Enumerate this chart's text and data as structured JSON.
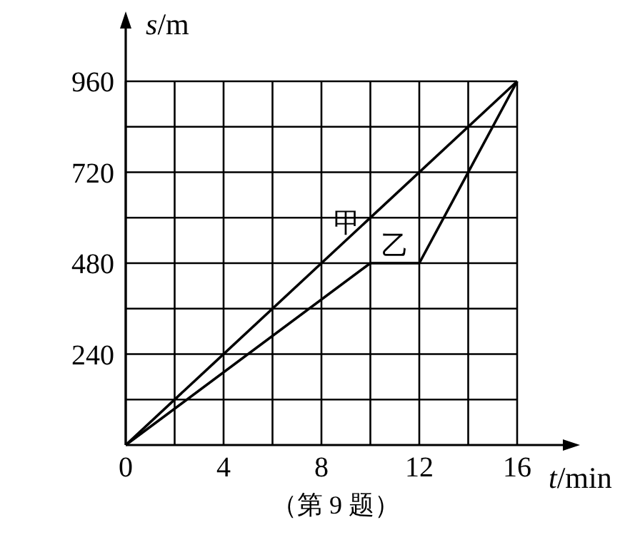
{
  "chart_data": {
    "type": "line",
    "xlabel": "t/min",
    "ylabel": "s/m",
    "series": [
      {
        "name": "甲",
        "color": "#000000",
        "x": [
          0,
          16
        ],
        "values": [
          0,
          960
        ]
      },
      {
        "name": "乙",
        "color": "#000000",
        "x": [
          0,
          10,
          12,
          16
        ],
        "values": [
          0,
          480,
          480,
          960
        ]
      }
    ],
    "xlim": [
      0,
      16
    ],
    "ylim": [
      0,
      960
    ],
    "xticks": [
      0,
      {
        "value": 2,
        "label": null
      },
      4,
      {
        "value": 6,
        "label": null
      },
      8,
      {
        "value": 10,
        "label": null
      },
      12,
      {
        "value": 14,
        "label": null
      },
      16
    ],
    "yticks": [
      {
        "value": 120,
        "label": null
      },
      240,
      {
        "value": 360,
        "label": null
      },
      480,
      {
        "value": 600,
        "label": null
      },
      720,
      {
        "value": 840,
        "label": null
      },
      960
    ],
    "grid": true,
    "marker": "none",
    "line_style": "solid",
    "annotations": [
      "（第 9 题）"
    ]
  }
}
